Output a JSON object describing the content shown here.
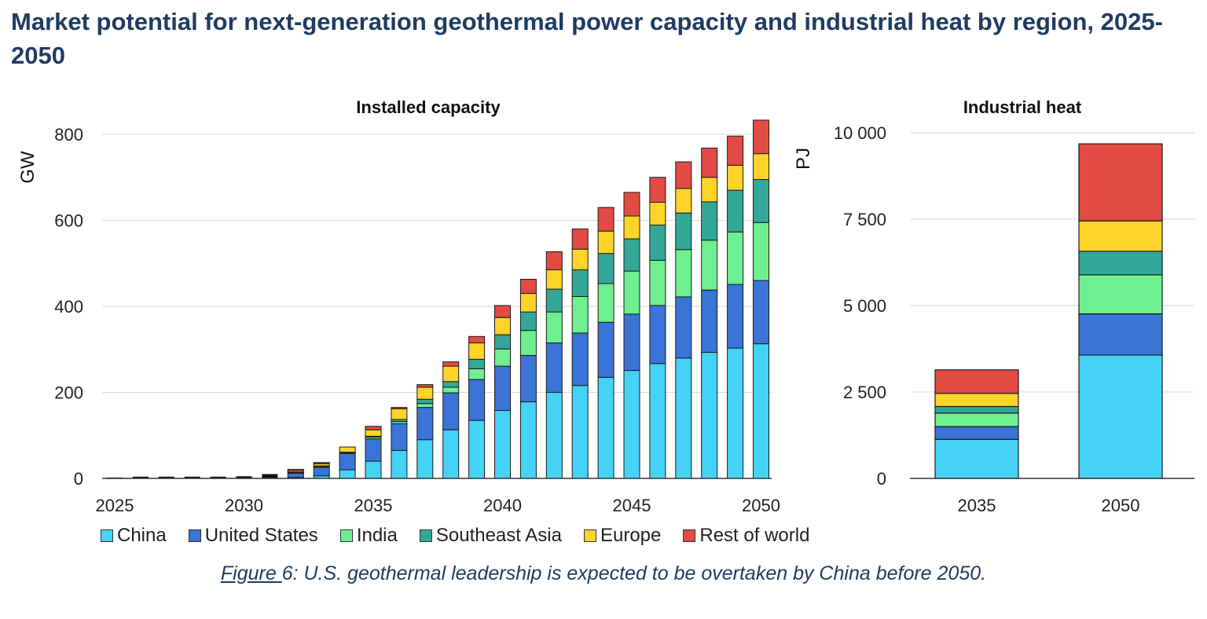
{
  "title": "Market potential for next-generation geothermal power capacity and industrial heat by region, 2025-2050",
  "caption": {
    "prefix": "Figure ",
    "text": "6: U.S. geothermal leadership is expected to be overtaken by China before 2050."
  },
  "legend": [
    {
      "name": "China",
      "color": "#45d2f7"
    },
    {
      "name": "United States",
      "color": "#3a74d6"
    },
    {
      "name": "India",
      "color": "#6ef091"
    },
    {
      "name": "Southeast Asia",
      "color": "#33a899"
    },
    {
      "name": "Europe",
      "color": "#ffd428"
    },
    {
      "name": "Rest of world",
      "color": "#e24b43"
    }
  ],
  "chart_data": [
    {
      "type": "bar",
      "stacked": true,
      "title": "Installed capacity",
      "ylabel": "GW",
      "ylim": [
        0,
        800
      ],
      "yticks": [
        0,
        200,
        400,
        600,
        800
      ],
      "xticks": [
        "2025",
        "2030",
        "2035",
        "2040",
        "2045",
        "2050"
      ],
      "grid": true,
      "legend_position": "bottom",
      "pre_total_color": "#111111",
      "categories": [
        "2025",
        "2026",
        "2027",
        "2028",
        "2029",
        "2030",
        "2031",
        "2032",
        "2033",
        "2034",
        "2035",
        "2036",
        "2037",
        "2038",
        "2039",
        "2040",
        "2041",
        "2042",
        "2043",
        "2044",
        "2045",
        "2046",
        "2047",
        "2048",
        "2049",
        "2050"
      ],
      "pre_totals": [
        2,
        4,
        4,
        4,
        4,
        5,
        10
      ],
      "series": [
        {
          "name": "China",
          "color": "#45d2f7",
          "values": [
            0,
            0,
            0,
            0,
            0,
            0,
            0,
            2,
            6,
            20,
            40,
            65,
            90,
            113,
            135,
            158,
            178,
            200,
            216,
            235,
            251,
            267,
            280,
            293,
            303,
            313
          ]
        },
        {
          "name": "United States",
          "color": "#3a74d6",
          "values": [
            0,
            0,
            0,
            0,
            0,
            0,
            0,
            10,
            20,
            38,
            52,
            62,
            75,
            86,
            95,
            103,
            108,
            115,
            122,
            128,
            131,
            135,
            142,
            145,
            148,
            147
          ]
        },
        {
          "name": "India",
          "color": "#6ef091",
          "values": [
            0,
            0,
            0,
            0,
            0,
            0,
            0,
            1,
            2,
            2,
            4,
            5,
            9,
            13,
            25,
            40,
            58,
            72,
            85,
            90,
            100,
            105,
            110,
            116,
            122,
            135
          ]
        },
        {
          "name": "Southeast Asia",
          "color": "#33a899",
          "values": [
            0,
            0,
            0,
            0,
            0,
            0,
            0,
            1,
            1,
            1,
            2,
            5,
            10,
            13,
            22,
            33,
            43,
            53,
            62,
            70,
            75,
            82,
            85,
            89,
            97,
            100
          ]
        },
        {
          "name": "Europe",
          "color": "#ffd428",
          "values": [
            0,
            0,
            0,
            0,
            0,
            0,
            0,
            3,
            5,
            12,
            15,
            25,
            28,
            36,
            38,
            40,
            43,
            45,
            48,
            52,
            53,
            53,
            57,
            57,
            58,
            60
          ]
        },
        {
          "name": "Rest of world",
          "color": "#e24b43",
          "values": [
            0,
            0,
            0,
            0,
            0,
            0,
            0,
            4,
            3,
            0,
            8,
            3,
            6,
            10,
            15,
            28,
            33,
            42,
            47,
            55,
            55,
            58,
            62,
            68,
            68,
            78
          ]
        }
      ]
    },
    {
      "type": "bar",
      "stacked": true,
      "title": "Industrial heat",
      "ylabel": "PJ",
      "ylim": [
        0,
        10000
      ],
      "yticks": [
        0,
        2500,
        5000,
        7500,
        10000
      ],
      "ytick_labels": [
        "0",
        "2 500",
        "5 000",
        "7 500",
        "10 000"
      ],
      "grid": true,
      "categories": [
        "2035",
        "2050"
      ],
      "series": [
        {
          "name": "China",
          "color": "#45d2f7",
          "values": [
            1130,
            3570
          ]
        },
        {
          "name": "United States",
          "color": "#3a74d6",
          "values": [
            370,
            1190
          ]
        },
        {
          "name": "India",
          "color": "#6ef091",
          "values": [
            390,
            1130
          ]
        },
        {
          "name": "Southeast Asia",
          "color": "#33a899",
          "values": [
            190,
            680
          ]
        },
        {
          "name": "Europe",
          "color": "#ffd428",
          "values": [
            380,
            880
          ]
        },
        {
          "name": "Rest of world",
          "color": "#e24b43",
          "values": [
            680,
            2230
          ]
        }
      ]
    }
  ]
}
